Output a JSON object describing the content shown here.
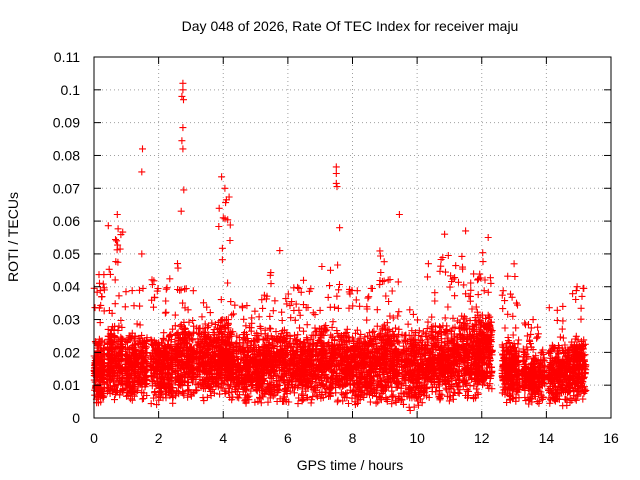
{
  "chart_data": {
    "type": "scatter",
    "title": "Day 048 of 2026, Rate Of TEC Index for receiver maju",
    "xlabel": "GPS time / hours",
    "ylabel": "ROTI / TECUs",
    "xlim": [
      0,
      16
    ],
    "ylim": [
      0,
      0.11
    ],
    "xticks": [
      0,
      2,
      4,
      6,
      8,
      10,
      12,
      14,
      16
    ],
    "xtick_labels": [
      "0",
      "2",
      "4",
      "6",
      "8",
      "10",
      "12",
      "14",
      "16"
    ],
    "yticks": [
      0,
      0.01,
      0.02,
      0.03,
      0.04,
      0.05,
      0.06,
      0.07,
      0.08,
      0.09,
      0.1,
      0.11
    ],
    "ytick_labels": [
      "0",
      "0.01",
      "0.02",
      "0.03",
      "0.04",
      "0.05",
      "0.06",
      "0.07",
      "0.08",
      "0.09",
      "0.1",
      "0.11"
    ],
    "grid": true,
    "marker": "+",
    "color": "#ff0000",
    "data_segments": [
      {
        "x_start": 0.0,
        "x_end": 12.35
      },
      {
        "x_start": 12.6,
        "x_end": 15.25
      }
    ],
    "notable_points": [
      {
        "x": 2.75,
        "y": 0.102
      },
      {
        "x": 2.75,
        "y": 0.1
      },
      {
        "x": 2.72,
        "y": 0.098
      },
      {
        "x": 2.77,
        "y": 0.097
      },
      {
        "x": 2.75,
        "y": 0.0885
      },
      {
        "x": 2.72,
        "y": 0.0845
      },
      {
        "x": 2.75,
        "y": 0.082
      },
      {
        "x": 1.5,
        "y": 0.082
      },
      {
        "x": 1.48,
        "y": 0.075
      },
      {
        "x": 3.95,
        "y": 0.0735
      },
      {
        "x": 7.5,
        "y": 0.0765
      },
      {
        "x": 7.5,
        "y": 0.0745
      },
      {
        "x": 7.5,
        "y": 0.0715
      },
      {
        "x": 7.52,
        "y": 0.0705
      },
      {
        "x": 2.78,
        "y": 0.0695
      },
      {
        "x": 4.05,
        "y": 0.07
      },
      {
        "x": 2.7,
        "y": 0.063
      },
      {
        "x": 0.72,
        "y": 0.062
      },
      {
        "x": 9.45,
        "y": 0.062
      },
      {
        "x": 4.0,
        "y": 0.061
      },
      {
        "x": 7.6,
        "y": 0.058
      },
      {
        "x": 11.5,
        "y": 0.057
      },
      {
        "x": 10.85,
        "y": 0.056
      },
      {
        "x": 12.2,
        "y": 0.055
      },
      {
        "x": 0.7,
        "y": 0.054
      },
      {
        "x": 1.48,
        "y": 0.05
      },
      {
        "x": 5.75,
        "y": 0.051
      },
      {
        "x": 13.0,
        "y": 0.047
      },
      {
        "x": 14.95,
        "y": 0.04
      }
    ],
    "clusters": [
      {
        "x_center": 0.15,
        "x_width": 0.35,
        "y_low": 0.004,
        "y_high": 0.025,
        "extra_high": 0.044,
        "count": 230
      },
      {
        "x_center": 0.65,
        "x_width": 0.5,
        "y_low": 0.005,
        "y_high": 0.03,
        "extra_high": 0.061,
        "count": 240
      },
      {
        "x_center": 1.3,
        "x_width": 0.7,
        "y_low": 0.005,
        "y_high": 0.027,
        "extra_high": 0.04,
        "count": 300
      },
      {
        "x_center": 2.1,
        "x_width": 0.7,
        "y_low": 0.004,
        "y_high": 0.027,
        "extra_high": 0.043,
        "count": 300
      },
      {
        "x_center": 2.8,
        "x_width": 0.6,
        "y_low": 0.006,
        "y_high": 0.03,
        "extra_high": 0.048,
        "count": 280
      },
      {
        "x_center": 3.5,
        "x_width": 0.7,
        "y_low": 0.005,
        "y_high": 0.03,
        "extra_high": 0.04,
        "count": 300
      },
      {
        "x_center": 4.05,
        "x_width": 0.4,
        "y_low": 0.006,
        "y_high": 0.032,
        "extra_high": 0.068,
        "count": 240
      },
      {
        "x_center": 4.7,
        "x_width": 0.9,
        "y_low": 0.004,
        "y_high": 0.027,
        "extra_high": 0.037,
        "count": 360
      },
      {
        "x_center": 5.6,
        "x_width": 0.9,
        "y_low": 0.004,
        "y_high": 0.028,
        "extra_high": 0.045,
        "count": 360
      },
      {
        "x_center": 6.5,
        "x_width": 0.9,
        "y_low": 0.004,
        "y_high": 0.028,
        "extra_high": 0.042,
        "count": 360
      },
      {
        "x_center": 7.4,
        "x_width": 0.9,
        "y_low": 0.004,
        "y_high": 0.03,
        "extra_high": 0.048,
        "count": 360
      },
      {
        "x_center": 8.3,
        "x_width": 0.9,
        "y_low": 0.004,
        "y_high": 0.028,
        "extra_high": 0.04,
        "count": 360
      },
      {
        "x_center": 9.1,
        "x_width": 0.7,
        "y_low": 0.004,
        "y_high": 0.03,
        "extra_high": 0.052,
        "count": 320
      },
      {
        "x_center": 9.9,
        "x_width": 0.8,
        "y_low": 0.002,
        "y_high": 0.028,
        "extra_high": 0.038,
        "count": 320
      },
      {
        "x_center": 10.7,
        "x_width": 0.8,
        "y_low": 0.005,
        "y_high": 0.03,
        "extra_high": 0.05,
        "count": 340
      },
      {
        "x_center": 11.5,
        "x_width": 0.8,
        "y_low": 0.005,
        "y_high": 0.032,
        "extra_high": 0.05,
        "count": 340
      },
      {
        "x_center": 12.1,
        "x_width": 0.45,
        "y_low": 0.008,
        "y_high": 0.032,
        "extra_high": 0.052,
        "count": 240
      },
      {
        "x_center": 12.9,
        "x_width": 0.55,
        "y_low": 0.004,
        "y_high": 0.025,
        "extra_high": 0.046,
        "count": 260
      },
      {
        "x_center": 13.6,
        "x_width": 0.7,
        "y_low": 0.004,
        "y_high": 0.022,
        "extra_high": 0.03,
        "count": 280
      },
      {
        "x_center": 14.4,
        "x_width": 0.7,
        "y_low": 0.003,
        "y_high": 0.024,
        "extra_high": 0.035,
        "count": 280
      },
      {
        "x_center": 15.0,
        "x_width": 0.45,
        "y_low": 0.005,
        "y_high": 0.026,
        "extra_high": 0.04,
        "count": 200
      }
    ]
  }
}
